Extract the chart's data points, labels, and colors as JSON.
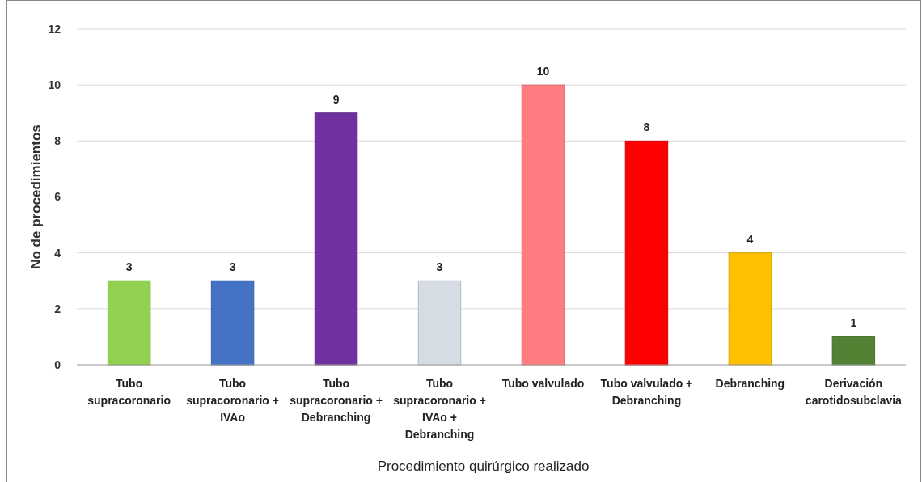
{
  "chart_data": {
    "type": "bar",
    "xlabel": "Procedimiento quirúrgico realizado",
    "ylabel": "No de procedimientos",
    "categories": [
      "Tubo supracoronario",
      "Tubo supracoronario + IVAo",
      "Tubo supracoronario + Debranching",
      "Tubo supracoronario + IVAo + Debranching",
      "Tubo valvulado",
      "Tubo valvulado + Debranching",
      "Debranching",
      "Derivación carotidosubclavia"
    ],
    "values": [
      3,
      3,
      9,
      3,
      10,
      8,
      4,
      1
    ],
    "colors": [
      "#92d050",
      "#4472c4",
      "#7030a0",
      "#d6dce4",
      "#ff7c80",
      "#ff0000",
      "#ffc000",
      "#548235"
    ],
    "ylim": [
      0,
      12
    ],
    "yticks": [
      0,
      2,
      4,
      6,
      8,
      10,
      12
    ],
    "grid": "y",
    "data_labels": true
  }
}
